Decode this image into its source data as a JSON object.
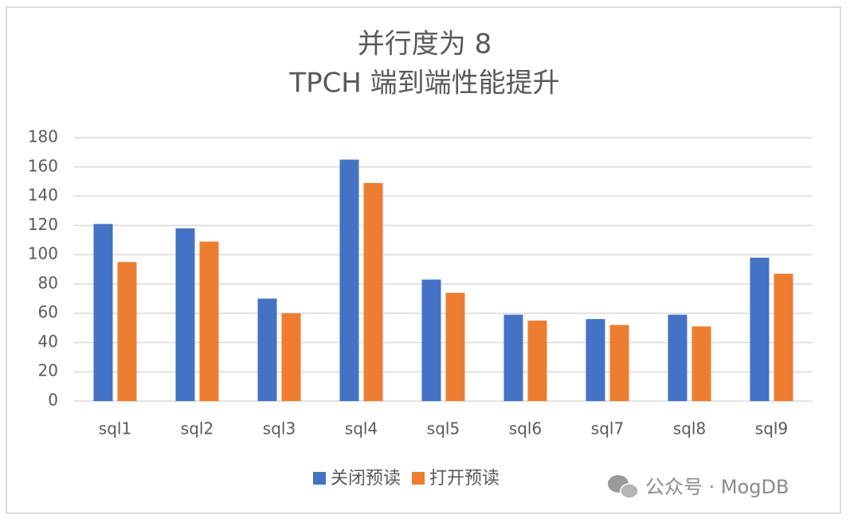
{
  "chart_data": {
    "type": "bar",
    "title": "并行度为 8",
    "subtitle": "TPCH 端到端性能提升",
    "categories": [
      "sql1",
      "sql2",
      "sql3",
      "sql4",
      "sql5",
      "sql6",
      "sql7",
      "sql8",
      "sql9"
    ],
    "series": [
      {
        "name": "关闭预读",
        "color": "#4472c4",
        "values": [
          121,
          118,
          70,
          165,
          83,
          59,
          56,
          59,
          98
        ]
      },
      {
        "name": "打开预读",
        "color": "#ed7d31",
        "values": [
          95,
          109,
          60,
          149,
          74,
          55,
          52,
          51,
          87
        ]
      }
    ],
    "ylim": [
      0,
      180
    ],
    "yticks": [
      0,
      20,
      40,
      60,
      80,
      100,
      120,
      140,
      160,
      180
    ],
    "grid": true,
    "legend": "bottom"
  },
  "watermark": "公众号 · MogDB"
}
